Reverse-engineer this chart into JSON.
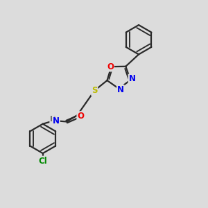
{
  "background_color": "#dcdcdc",
  "bond_color": "#2a2a2a",
  "bond_width": 1.6,
  "atom_colors": {
    "N": "#0000ee",
    "O": "#ee0000",
    "S": "#bbbb00",
    "Cl": "#008800",
    "H": "#666666",
    "C": "#2a2a2a"
  },
  "font_size_atom": 8.5
}
